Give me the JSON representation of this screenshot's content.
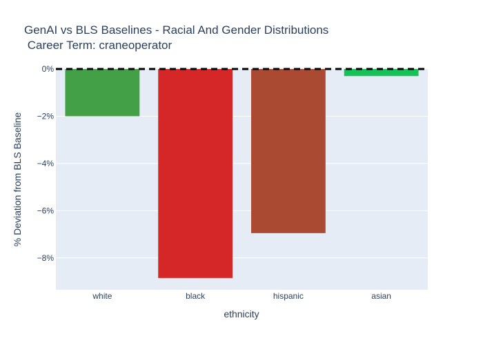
{
  "chart_data": {
    "type": "bar",
    "title_lines": [
      "GenAI vs BLS Baselines - Racial And Gender Distributions",
      " Career Term: craneoperator"
    ],
    "xlabel": "ethnicity",
    "ylabel": "% Deviation from BLS Baseline",
    "categories": [
      "white",
      "black",
      "hispanic",
      "asian"
    ],
    "values": [
      -2.0,
      -8.85,
      -6.95,
      -0.3
    ],
    "colors": [
      "#43a047",
      "#d62728",
      "#ab4a32",
      "#18c157"
    ],
    "ylim": [
      -9.35,
      0
    ],
    "yticks": [
      0,
      -2,
      -4,
      -6,
      -8
    ],
    "ytick_labels": [
      "0%",
      "−2%",
      "−4%",
      "−6%",
      "−8%"
    ],
    "baseline": 0,
    "grid": true,
    "plot_bg": "#e5ecf6"
  }
}
